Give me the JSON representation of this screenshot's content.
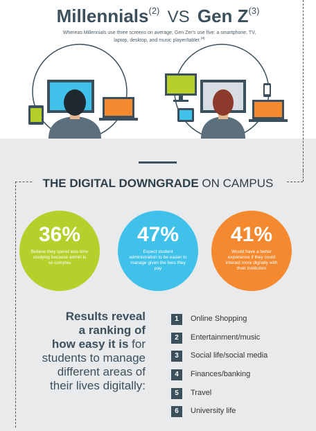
{
  "header": {
    "title_a": "Millennials",
    "sup_a": "(2)",
    "vs": "VS",
    "title_b": "Gen Z",
    "sup_b": "(3)",
    "subtitle": "Whereas Millennials use three screens on average, Gen Zer's use five: a smartphone, TV, laptop, desktop, and music player/tablet.",
    "subtitle_ref": "(4)"
  },
  "colors": {
    "dark": "#3b4f5c",
    "green": "#b6cf2b",
    "blue": "#3fc1ea",
    "orange": "#f4892f",
    "grey_bg": "#e9eaeb"
  },
  "section": {
    "title_strong": "THE DIGITAL DOWNGRADE",
    "title_light": "ON CAMPUS"
  },
  "stats": [
    {
      "value": "36%",
      "text": "Believe they spend less time studying because admin is so complex"
    },
    {
      "value": "47%",
      "text": "Expect student administration to be easier to manage given the fees they pay"
    },
    {
      "value": "41%",
      "text": "Would have a better experience if they could interact more digitally with their institution"
    }
  ],
  "results": {
    "line1": "Results reveal",
    "line2": "a ranking of",
    "line3_bold": "how easy it is",
    "line3_rest": "for",
    "line4": "students to manage",
    "line5": "different areas of",
    "line6": "their lives digitally:"
  },
  "ranking": [
    {
      "num": "1",
      "label": "Online Shopping"
    },
    {
      "num": "2",
      "label": "Entertainment/music"
    },
    {
      "num": "3",
      "label": "Social life/social media"
    },
    {
      "num": "4",
      "label": "Finances/banking"
    },
    {
      "num": "5",
      "label": "Travel"
    },
    {
      "num": "6",
      "label": "University life"
    }
  ],
  "icons": [
    "desktop-monitor-icon",
    "laptop-icon",
    "tablet-icon",
    "smartphone-icon",
    "music-player-icon",
    "tv-icon"
  ]
}
